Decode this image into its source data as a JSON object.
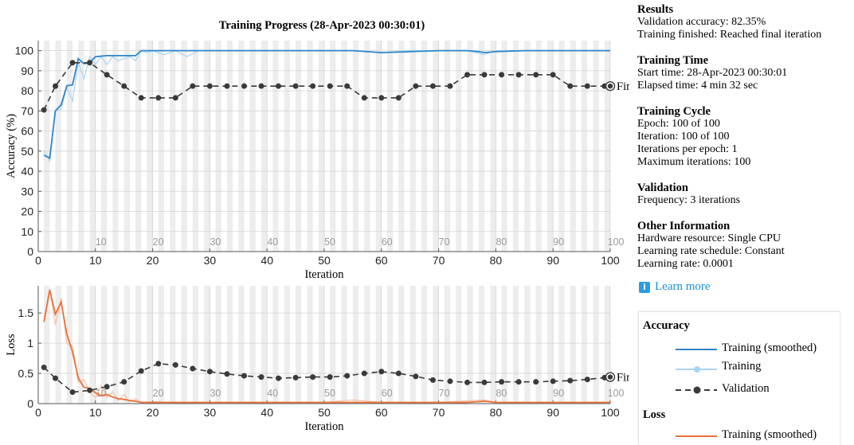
{
  "title": "Training Progress (28-Apr-2023 00:30:01)",
  "colors": {
    "acc_smoothed": "#2e86c9",
    "acc_raw": "#a9d4f3",
    "loss_smoothed": "#e9703a",
    "loss_raw": "#f5c2a5",
    "validation": "#3a3a3a",
    "epoch_band": "#ededed"
  },
  "info": {
    "results": {
      "heading": "Results",
      "lines": [
        "Validation accuracy: 82.35%",
        "Training finished: Reached final iteration"
      ]
    },
    "time": {
      "heading": "Training Time",
      "lines": [
        "Start time: 28-Apr-2023 00:30:01",
        "Elapsed time: 4 min 32 sec"
      ]
    },
    "cycle": {
      "heading": "Training Cycle",
      "lines": [
        "Epoch: 100 of 100",
        "Iteration: 100 of 100",
        "Iterations per epoch: 1",
        "Maximum iterations: 100"
      ]
    },
    "validation": {
      "heading": "Validation",
      "lines": [
        "Frequency: 3 iterations"
      ]
    },
    "other": {
      "heading": "Other Information",
      "lines": [
        "Hardware resource: Single CPU",
        "Learning rate schedule: Constant",
        "Learning rate: 0.0001"
      ]
    }
  },
  "learn_more": "Learn more",
  "legend": {
    "acc_heading": "Accuracy",
    "acc_items": [
      "Training (smoothed)",
      "Training",
      "Validation"
    ],
    "loss_heading": "Loss",
    "loss_items": [
      "Training (smoothed)"
    ]
  },
  "chart_data": [
    {
      "type": "line",
      "title": "Training Progress (28-Apr-2023 00:30:01)",
      "xlabel": "Iteration",
      "ylabel": "Accuracy (%)",
      "xlim": [
        0,
        100
      ],
      "ylim": [
        0,
        105
      ],
      "xticks": [
        0,
        10,
        20,
        30,
        40,
        50,
        60,
        70,
        80,
        90,
        100
      ],
      "yticks": [
        0,
        10,
        20,
        30,
        40,
        50,
        60,
        70,
        80,
        90,
        100
      ],
      "epoch_labels": [
        10,
        20,
        30,
        40,
        50,
        60,
        70,
        80,
        90,
        100
      ],
      "final_label": "Final",
      "series": [
        {
          "name": "Training (smoothed)",
          "x": [
            1,
            2,
            3,
            4,
            5,
            6,
            7,
            8,
            9,
            10,
            12,
            15,
            17,
            18,
            20,
            25,
            30,
            40,
            50,
            55,
            60,
            65,
            70,
            75,
            77,
            78,
            80,
            85,
            90,
            95,
            100
          ],
          "values": [
            48,
            46.5,
            70,
            73,
            82.5,
            83,
            96,
            93.5,
            94,
            97,
            97.5,
            97.5,
            97.5,
            100,
            100,
            100,
            100,
            100,
            100,
            100,
            99,
            99.5,
            100,
            100,
            99.5,
            99,
            99.5,
            100,
            100,
            100,
            100
          ]
        },
        {
          "name": "Training",
          "x": [
            1,
            2,
            3,
            4,
            5,
            6,
            7,
            8,
            9,
            10,
            11,
            12,
            13,
            14,
            15,
            16,
            17,
            18,
            19,
            20,
            22,
            24,
            26,
            28,
            30,
            35,
            40,
            45,
            50,
            55,
            60,
            65,
            70,
            75,
            78,
            80,
            85,
            90,
            95,
            100
          ],
          "values": [
            50,
            45,
            70,
            71,
            82,
            75,
            94,
            86,
            97,
            93,
            97,
            93,
            97,
            95,
            96,
            97,
            95,
            100,
            99,
            100,
            98,
            100,
            97,
            100,
            100,
            100,
            100,
            100,
            100,
            100,
            99,
            100,
            100,
            100,
            98,
            100,
            100,
            100,
            100,
            100
          ]
        },
        {
          "name": "Validation",
          "x": [
            1,
            3,
            6,
            9,
            12,
            15,
            18,
            21,
            24,
            27,
            30,
            33,
            36,
            39,
            42,
            45,
            48,
            51,
            54,
            57,
            60,
            63,
            66,
            69,
            72,
            75,
            78,
            81,
            84,
            87,
            90,
            93,
            96,
            99,
            100
          ],
          "values": [
            70.5,
            82.35,
            94,
            94,
            88,
            82.35,
            76.5,
            76.5,
            76.5,
            82.35,
            82.35,
            82.35,
            82.35,
            82.35,
            82.35,
            82.35,
            82.35,
            82.35,
            82.35,
            76.5,
            76.5,
            76.5,
            82.35,
            82.35,
            82.35,
            88,
            88,
            88,
            88,
            88,
            88,
            82.35,
            82.35,
            82.35,
            82.35
          ]
        }
      ]
    },
    {
      "type": "line",
      "xlabel": "Iteration",
      "ylabel": "Loss",
      "xlim": [
        0,
        100
      ],
      "ylim": [
        0,
        1.95
      ],
      "xticks": [
        0,
        10,
        20,
        30,
        40,
        50,
        60,
        70,
        80,
        90,
        100
      ],
      "yticks": [
        0,
        0.5,
        1,
        1.5
      ],
      "ytick_labels": [
        "0",
        "0.5",
        "1",
        "1.5"
      ],
      "epoch_labels": [
        10,
        20,
        30,
        40,
        50,
        60,
        70,
        80,
        90,
        100
      ],
      "final_label": "Final",
      "series": [
        {
          "name": "Training (smoothed)",
          "x": [
            1,
            2,
            3,
            4,
            5,
            6,
            7,
            8,
            9,
            10,
            11,
            12,
            13,
            14,
            15,
            16,
            17,
            18,
            20,
            25,
            30,
            40,
            50,
            55,
            60,
            65,
            70,
            75,
            78,
            80,
            85,
            90,
            95,
            100
          ],
          "values": [
            1.35,
            1.88,
            1.48,
            1.68,
            1.15,
            0.85,
            0.42,
            0.27,
            0.25,
            0.18,
            0.13,
            0.15,
            0.11,
            0.08,
            0.07,
            0.05,
            0.04,
            0.02,
            0.02,
            0.02,
            0.02,
            0.02,
            0.02,
            0.02,
            0.02,
            0.02,
            0.02,
            0.02,
            0.04,
            0.02,
            0.02,
            0.02,
            0.02,
            0.02
          ]
        },
        {
          "name": "Training",
          "x": [
            1,
            2,
            3,
            4,
            5,
            6,
            7,
            8,
            9,
            10,
            11,
            12,
            13,
            14,
            15,
            16,
            17,
            18,
            20,
            25,
            30,
            40,
            50,
            55,
            60,
            70,
            78,
            80,
            90,
            100
          ],
          "values": [
            1.4,
            1.9,
            1.3,
            1.75,
            1.0,
            0.95,
            0.35,
            0.4,
            0.2,
            0.1,
            0.3,
            0.1,
            0.2,
            0.05,
            0.15,
            0.03,
            0.08,
            0.02,
            0.03,
            0.02,
            0.02,
            0.02,
            0.02,
            0.06,
            0.02,
            0.02,
            0.06,
            0.02,
            0.02,
            0.02
          ]
        },
        {
          "name": "Validation",
          "x": [
            1,
            3,
            6,
            9,
            12,
            15,
            18,
            21,
            24,
            27,
            30,
            33,
            36,
            39,
            42,
            45,
            48,
            51,
            54,
            57,
            60,
            63,
            66,
            69,
            72,
            75,
            78,
            81,
            84,
            87,
            90,
            93,
            96,
            99,
            100
          ],
          "values": [
            0.6,
            0.42,
            0.19,
            0.22,
            0.28,
            0.36,
            0.54,
            0.66,
            0.64,
            0.58,
            0.53,
            0.49,
            0.46,
            0.44,
            0.42,
            0.43,
            0.44,
            0.44,
            0.46,
            0.5,
            0.53,
            0.5,
            0.45,
            0.39,
            0.37,
            0.35,
            0.35,
            0.36,
            0.36,
            0.36,
            0.37,
            0.38,
            0.4,
            0.43,
            0.44
          ]
        }
      ]
    }
  ]
}
